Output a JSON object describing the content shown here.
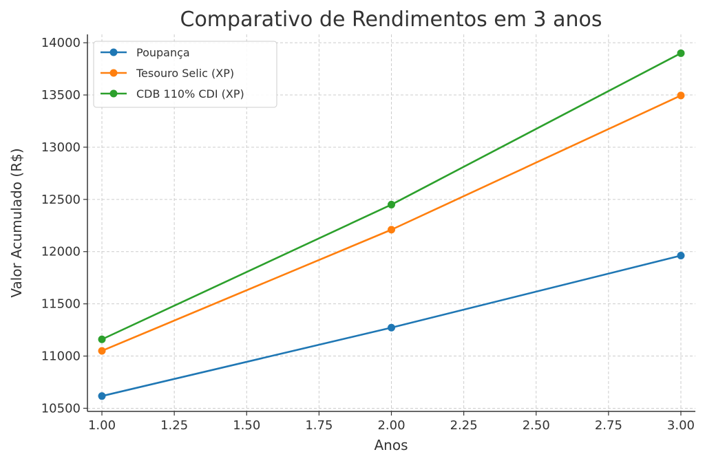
{
  "chart_data": {
    "type": "line",
    "title": "Comparativo de Rendimentos em 3 anos",
    "xlabel": "Anos",
    "ylabel": "Valor Acumulado (R$)",
    "xlim": [
      0.95,
      3.05
    ],
    "ylim": [
      10470,
      14080
    ],
    "xticks": [
      1.0,
      1.25,
      1.5,
      1.75,
      2.0,
      2.25,
      2.5,
      2.75,
      3.0
    ],
    "xtick_labels": [
      "1.00",
      "1.25",
      "1.50",
      "1.75",
      "2.00",
      "2.25",
      "2.50",
      "2.75",
      "3.00"
    ],
    "yticks": [
      10500,
      11000,
      11500,
      12000,
      12500,
      13000,
      13500,
      14000
    ],
    "ytick_labels": [
      "10500",
      "11000",
      "11500",
      "12000",
      "12500",
      "13000",
      "13500",
      "14000"
    ],
    "grid": true,
    "legend_position": "top-left",
    "x": [
      1,
      2,
      3
    ],
    "series": [
      {
        "name": "Poupança",
        "color": "#1f77b4",
        "values": [
          10617,
          11272,
          11962
        ]
      },
      {
        "name": "Tesouro Selic (XP)",
        "color": "#ff7f0e",
        "values": [
          11050,
          12210,
          13495
        ]
      },
      {
        "name": "CDB 110% CDI (XP)",
        "color": "#2ca02c",
        "values": [
          11160,
          12450,
          13900
        ]
      }
    ]
  }
}
